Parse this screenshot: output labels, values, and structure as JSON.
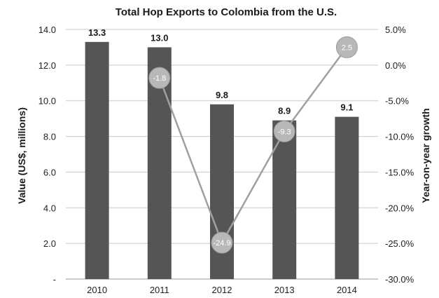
{
  "chart_data": {
    "type": "bar",
    "title": "Total Hop Exports to Colombia from the U.S.",
    "categories": [
      "2010",
      "2011",
      "2012",
      "2013",
      "2014"
    ],
    "series": [
      {
        "kind": "bar",
        "axis": "left",
        "values": [
          13.3,
          13.0,
          9.8,
          8.9,
          9.1
        ],
        "labels": [
          "13.3",
          "13.0",
          "9.8",
          "8.9",
          "9.1"
        ]
      },
      {
        "kind": "line",
        "axis": "right",
        "values": [
          null,
          -1.8,
          -24.9,
          -9.3,
          2.5
        ],
        "labels": [
          "",
          "-1.8",
          "-24.9",
          "-9.3",
          "2.5"
        ]
      }
    ],
    "ylabel": "Value (US$, millions)",
    "y2label": "Year-on-year growth",
    "ylim": [
      0,
      14
    ],
    "y2lim": [
      -30,
      5
    ],
    "y_ticks": [
      "-",
      "2.0",
      "4.0",
      "6.0",
      "8.0",
      "10.0",
      "12.0",
      "14.0"
    ],
    "y2_ticks": [
      "-30.0%",
      "-25.0%",
      "-20.0%",
      "-15.0%",
      "-10.0%",
      "-5.0%",
      "0.0%",
      "5.0%"
    ],
    "grid": true,
    "colors": {
      "bar": "#555555",
      "line": "#a0a0a0",
      "marker": "#b8b8b8",
      "grid": "#c8c8c8"
    }
  }
}
